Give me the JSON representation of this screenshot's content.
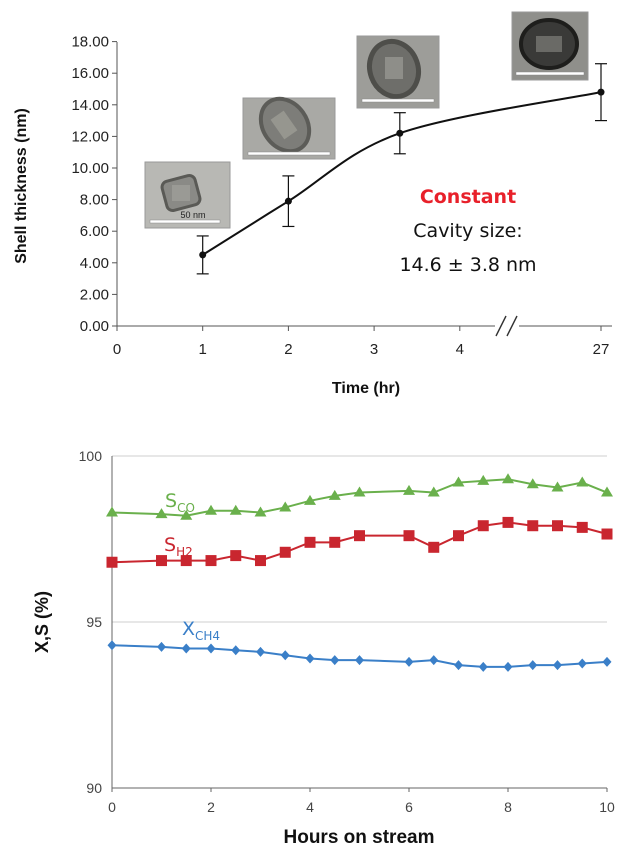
{
  "chart_data": [
    {
      "type": "line",
      "xlabel": "Time (hr)",
      "ylabel": "Shell thickness (nm)",
      "ylim": [
        0,
        18
      ],
      "x_ticks": [
        "0",
        "1",
        "2",
        "3",
        "4",
        "27"
      ],
      "y_ticks": [
        "0.00",
        "2.00",
        "4.00",
        "6.00",
        "8.00",
        "10.00",
        "12.00",
        "14.00",
        "16.00",
        "18.00"
      ],
      "axis_break_between": [
        4,
        27
      ],
      "points": [
        {
          "x": 1,
          "y": 4.5,
          "err": 1.2
        },
        {
          "x": 2,
          "y": 7.9,
          "err": 1.6
        },
        {
          "x": 3.3,
          "y": 12.2,
          "err": 1.3
        },
        {
          "x": 27,
          "y": 14.8,
          "err": 1.8
        }
      ],
      "inset_labels": [
        "50 nm"
      ],
      "annotations": {
        "highlight": "Constant",
        "line1": "Cavity size:",
        "line2": "14.6 ± 3.8 nm"
      },
      "line_color": "#111111"
    },
    {
      "type": "line",
      "xlabel": "Hours on stream",
      "ylabel": "X,S (%)",
      "ylim": [
        90,
        100
      ],
      "xlim": [
        0,
        10
      ],
      "y_ticks": [
        "90",
        "95",
        "100"
      ],
      "x_ticks": [
        "0",
        "2",
        "4",
        "6",
        "8",
        "10"
      ],
      "grid": "horizontal",
      "series": [
        {
          "label_main": "S",
          "label_sub": "CO",
          "color": "#6ab04c",
          "marker": "triangle",
          "x": [
            0,
            1,
            1.5,
            2,
            2.5,
            3,
            3.5,
            4,
            4.5,
            5,
            6,
            6.5,
            7,
            7.5,
            8,
            8.5,
            9,
            9.5,
            10
          ],
          "y": [
            98.3,
            98.25,
            98.2,
            98.35,
            98.35,
            98.3,
            98.45,
            98.65,
            98.8,
            98.9,
            98.95,
            98.9,
            99.2,
            99.25,
            99.3,
            99.15,
            99.05,
            99.2,
            98.9
          ]
        },
        {
          "label_main": "S",
          "label_sub": "H2",
          "color": "#c9262f",
          "marker": "square",
          "x": [
            0,
            1,
            1.5,
            2,
            2.5,
            3,
            3.5,
            4,
            4.5,
            5,
            6,
            6.5,
            7,
            7.5,
            8,
            8.5,
            9,
            9.5,
            10
          ],
          "y": [
            96.8,
            96.85,
            96.85,
            96.85,
            97.0,
            96.85,
            97.1,
            97.4,
            97.4,
            97.6,
            97.6,
            97.25,
            97.6,
            97.9,
            98.0,
            97.9,
            97.9,
            97.85,
            97.65
          ]
        },
        {
          "label_main": "X",
          "label_sub": "CH4",
          "color": "#3a7fc8",
          "marker": "diamond",
          "x": [
            0,
            1,
            1.5,
            2,
            2.5,
            3,
            3.5,
            4,
            4.5,
            5,
            6,
            6.5,
            7,
            7.5,
            8,
            8.5,
            9,
            9.5,
            10
          ],
          "y": [
            94.3,
            94.25,
            94.2,
            94.2,
            94.15,
            94.1,
            94.0,
            93.9,
            93.85,
            93.85,
            93.8,
            93.85,
            93.7,
            93.65,
            93.65,
            93.7,
            93.7,
            93.75,
            93.8
          ]
        }
      ]
    }
  ]
}
